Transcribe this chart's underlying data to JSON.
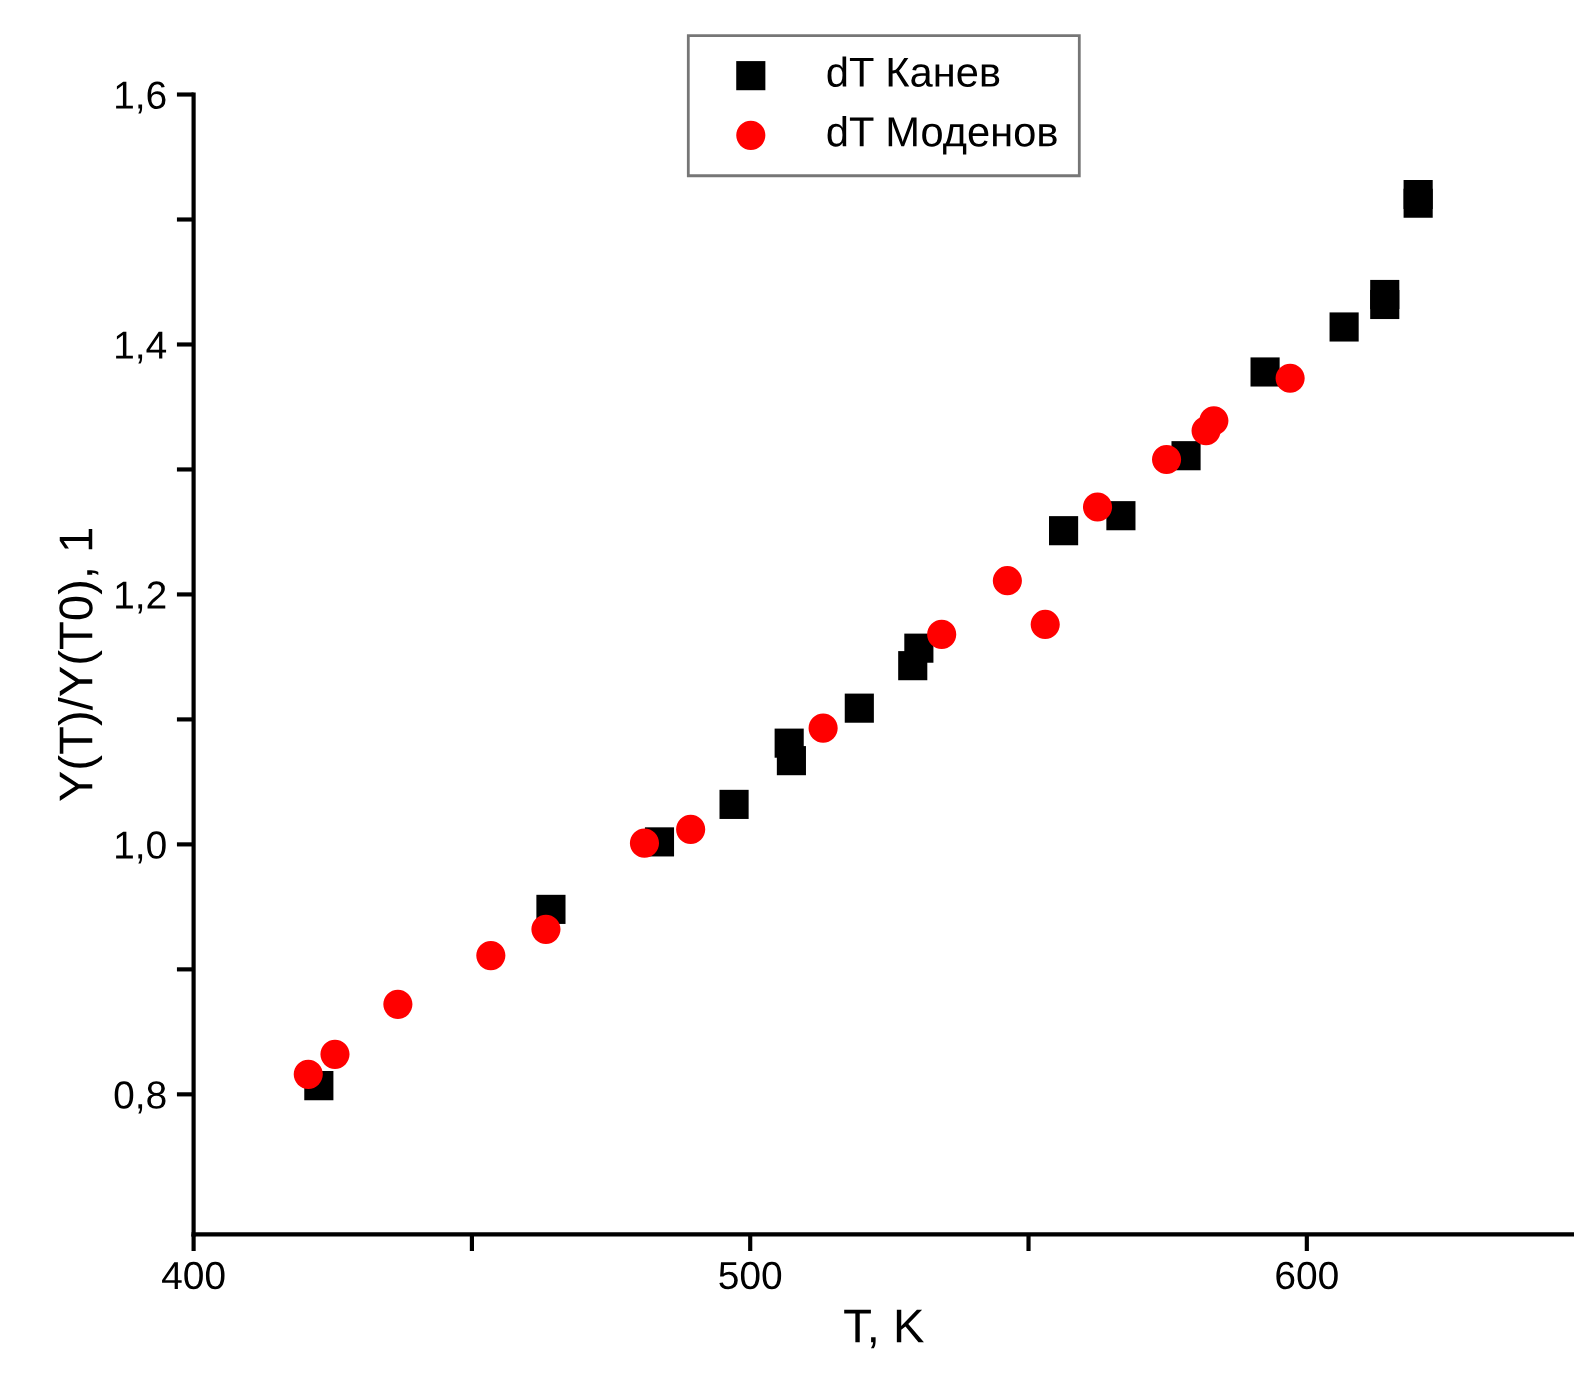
{
  "chart_data": {
    "type": "scatter",
    "xlabel": "T, K",
    "ylabel": "Y(T)/Y(T0), 1",
    "xlim": [
      400,
      648
    ],
    "xticks": [
      400,
      {
        "value": 450,
        "label": null
      },
      500,
      {
        "value": 550,
        "label": null
      },
      600
    ],
    "ylim": [
      0.688,
      1.6
    ],
    "yticks": [
      {
        "value": 0.8,
        "label": "0,8"
      },
      {
        "value": 0.9,
        "label": null
      },
      {
        "value": 1.0,
        "label": "1,0"
      },
      {
        "value": 1.1,
        "label": null
      },
      {
        "value": 1.2,
        "label": "1,2"
      },
      {
        "value": 1.3,
        "label": null
      },
      {
        "value": 1.4,
        "label": "1,4"
      },
      {
        "value": 1.5,
        "label": null
      },
      {
        "value": 1.6,
        "label": "1,6"
      }
    ],
    "grid": false,
    "legend": "top",
    "series": [
      {
        "name": "dT Канев",
        "color": "#000000",
        "marker": "square",
        "x": [
          422.5,
          464.2,
          483.7,
          497.1,
          507.0,
          507.4,
          519.6,
          529.2,
          530.3,
          556.3,
          566.6,
          578.3,
          592.5,
          606.7,
          614.0,
          614.0,
          620.0,
          620.0
        ],
        "values": [
          0.807,
          0.948,
          1.002,
          1.032,
          1.081,
          1.067,
          1.109,
          1.143,
          1.157,
          1.251,
          1.263,
          1.311,
          1.378,
          1.414,
          1.432,
          1.44,
          1.513,
          1.52
        ]
      },
      {
        "name": "dT Моденов",
        "color": "#ff0000",
        "marker": "circle",
        "x": [
          420.6,
          425.4,
          436.7,
          453.4,
          463.3,
          481.0,
          489.3,
          513.1,
          534.4,
          546.2,
          553.0,
          562.4,
          574.8,
          581.9,
          583.3,
          597.0
        ],
        "values": [
          0.816,
          0.832,
          0.872,
          0.911,
          0.932,
          1.001,
          1.012,
          1.093,
          1.168,
          1.211,
          1.176,
          1.27,
          1.308,
          1.331,
          1.339,
          1.373
        ]
      }
    ]
  }
}
